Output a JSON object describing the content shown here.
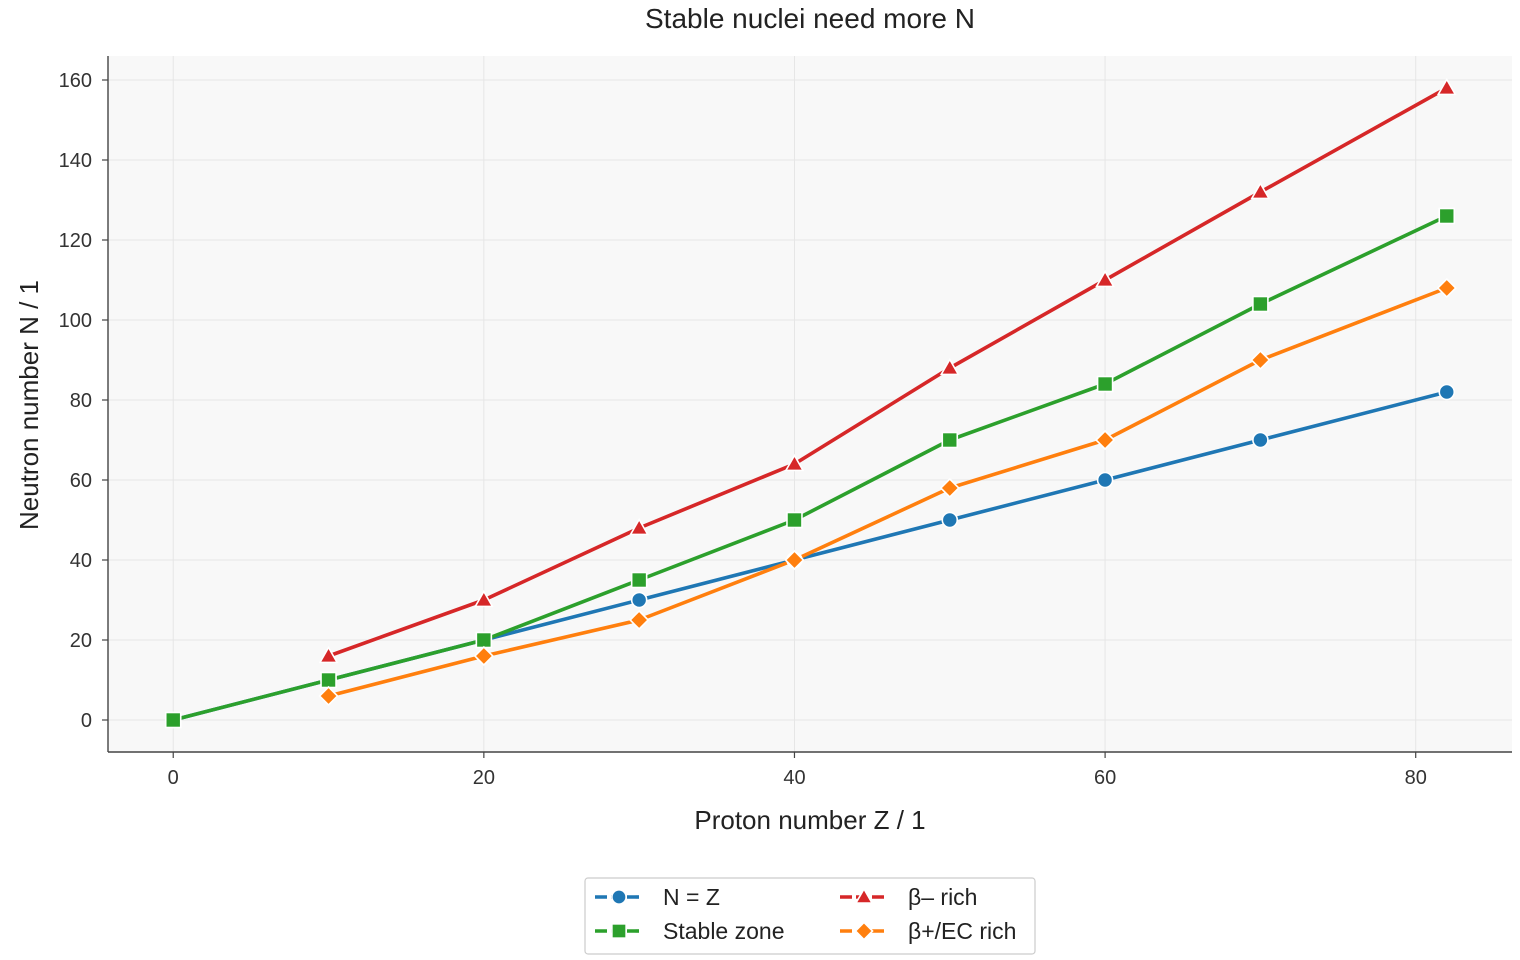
{
  "chart_data": {
    "type": "line",
    "title": "Stable nuclei need more N",
    "xlabel": "Proton number Z / 1",
    "ylabel": "Neutron number N / 1",
    "xlim": [
      -4.2,
      86.2
    ],
    "ylim": [
      -8,
      166
    ],
    "x_ticks": [
      0,
      20,
      40,
      60,
      80
    ],
    "y_ticks": [
      0,
      20,
      40,
      60,
      80,
      100,
      120,
      140,
      160
    ],
    "grid": true,
    "legend_position": "bottom-center",
    "series": [
      {
        "name": "N = Z",
        "color": "#1f77b4",
        "marker": "circle",
        "points": [
          [
            0,
            0
          ],
          [
            10,
            10
          ],
          [
            20,
            20
          ],
          [
            30,
            30
          ],
          [
            40,
            40
          ],
          [
            50,
            50
          ],
          [
            60,
            60
          ],
          [
            70,
            70
          ],
          [
            82,
            82
          ]
        ]
      },
      {
        "name": "Stable zone",
        "color": "#2ca02c",
        "marker": "square",
        "points": [
          [
            0,
            0
          ],
          [
            10,
            10
          ],
          [
            20,
            20
          ],
          [
            30,
            35
          ],
          [
            40,
            50
          ],
          [
            50,
            70
          ],
          [
            60,
            84
          ],
          [
            70,
            104
          ],
          [
            82,
            126
          ]
        ]
      },
      {
        "name": "β– rich",
        "color": "#d62728",
        "marker": "triangle",
        "points": [
          [
            10,
            16
          ],
          [
            20,
            30
          ],
          [
            30,
            48
          ],
          [
            40,
            64
          ],
          [
            50,
            88
          ],
          [
            60,
            110
          ],
          [
            70,
            132
          ],
          [
            82,
            158
          ]
        ]
      },
      {
        "name": "β+/EC rich",
        "color": "#ff7f0e",
        "marker": "diamond",
        "points": [
          [
            10,
            6
          ],
          [
            20,
            16
          ],
          [
            30,
            25
          ],
          [
            40,
            40
          ],
          [
            50,
            58
          ],
          [
            60,
            70
          ],
          [
            70,
            90
          ],
          [
            82,
            108
          ]
        ]
      }
    ]
  }
}
